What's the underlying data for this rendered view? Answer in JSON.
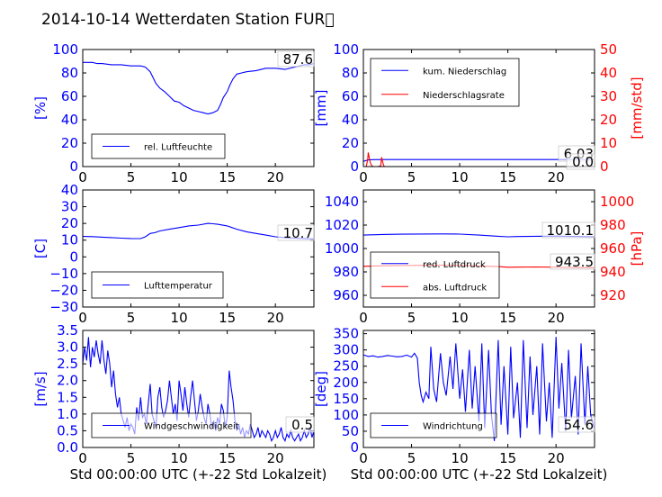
{
  "figure": {
    "title": "2014-10-14 Wetterdaten Station FUR\u0000",
    "colors": {
      "primary": "#0000ff",
      "secondary": "#ff0000",
      "frame": "#000000"
    }
  },
  "chart_data": [
    {
      "id": "humidity",
      "type": "line",
      "title": "",
      "xlabel": "",
      "ylabel": "[%]",
      "xlim": [
        0,
        24
      ],
      "ylim": [
        0,
        100
      ],
      "xticks": [
        "0",
        "5",
        "10",
        "15",
        "20"
      ],
      "yticks": [
        "0",
        "20",
        "40",
        "60",
        "80",
        "100"
      ],
      "annotation": "87.6",
      "legend": {
        "placement": "lower-left",
        "entries": [
          "rel. Luftfeuchte"
        ]
      },
      "series": [
        {
          "name": "rel. Luftfeuchte",
          "color": "#0000ff",
          "x": [
            0,
            0.5,
            1,
            1.5,
            2,
            3,
            4,
            5,
            6,
            6.5,
            7,
            7.3,
            7.6,
            8,
            8.5,
            9,
            9.5,
            10,
            10.5,
            11,
            11.5,
            12,
            12.5,
            13,
            13.5,
            14,
            14.3,
            14.6,
            15,
            15.3,
            15.6,
            16,
            16.5,
            17,
            18,
            19,
            20,
            21,
            22,
            23,
            23.5,
            24
          ],
          "values": [
            89,
            89,
            89,
            88,
            88,
            87,
            87,
            86,
            86,
            85,
            81,
            76,
            71,
            67,
            64,
            60,
            56,
            55,
            52,
            50,
            48,
            47,
            46,
            45,
            46,
            48,
            53,
            59,
            64,
            70,
            75,
            79,
            80,
            81,
            82,
            84,
            84,
            83,
            85,
            87,
            87,
            88
          ]
        }
      ]
    },
    {
      "id": "precipitation",
      "type": "line",
      "title": "",
      "xlabel": "",
      "ylabel": "[mm]",
      "ylabel_right": "[mm/std]",
      "xlim": [
        0,
        24
      ],
      "ylim": [
        0,
        100
      ],
      "ylim_right": [
        0,
        50
      ],
      "xticks": [
        "0",
        "5",
        "10",
        "15",
        "20"
      ],
      "yticks": [
        "0",
        "20",
        "40",
        "60",
        "80",
        "100"
      ],
      "yticks_right": [
        "0",
        "10",
        "20",
        "30",
        "40",
        "50"
      ],
      "annotations": [
        "6.03",
        "0.0"
      ],
      "legend": {
        "placement": "upper-left",
        "entries": [
          "kum. Niederschlag",
          "Niederschlagsrate"
        ]
      },
      "series": [
        {
          "name": "kum. Niederschlag",
          "color": "#0000ff",
          "axis": "left",
          "x": [
            0,
            0.3,
            0.5,
            1,
            2,
            3,
            24
          ],
          "values": [
            4.5,
            5.2,
            5.7,
            5.9,
            6.0,
            6.03,
            6.03
          ]
        },
        {
          "name": "Niederschlagsrate",
          "color": "#ff0000",
          "axis": "right",
          "x": [
            0,
            0.3,
            0.45,
            0.5,
            0.6,
            0.7,
            0.8,
            0.9,
            1,
            1.2,
            1.5,
            1.8,
            1.9,
            2,
            2.1,
            2.2,
            2.4,
            3,
            24
          ],
          "values": [
            0,
            0,
            3,
            6,
            4,
            2,
            0.8,
            0.3,
            0,
            0,
            0,
            0.3,
            4,
            2,
            0.5,
            0,
            0,
            0,
            0
          ]
        }
      ]
    },
    {
      "id": "temperature",
      "type": "line",
      "title": "",
      "xlabel": "",
      "ylabel": "[C]",
      "xlim": [
        0,
        24
      ],
      "ylim": [
        -30,
        40
      ],
      "xticks": [
        "0",
        "5",
        "10",
        "15",
        "20"
      ],
      "yticks": [
        "−30",
        "−20",
        "−10",
        "0",
        "10",
        "20",
        "30",
        "40"
      ],
      "annotation": "10.7",
      "legend": {
        "placement": "lower-left",
        "entries": [
          "Lufttemperatur"
        ]
      },
      "series": [
        {
          "name": "Lufttemperatur",
          "color": "#0000ff",
          "x": [
            0,
            1,
            2,
            3,
            4,
            5,
            6,
            6.5,
            7,
            7.5,
            8,
            9,
            10,
            11,
            12,
            13,
            13.5,
            14,
            15,
            16,
            17,
            18,
            19,
            20,
            21,
            22,
            23,
            24
          ],
          "values": [
            12.2,
            12.1,
            11.8,
            11.5,
            11.2,
            11,
            10.9,
            12,
            14,
            14.5,
            15.5,
            16.5,
            17.5,
            18.5,
            19,
            20,
            19.8,
            19.5,
            18.5,
            16.5,
            15,
            14,
            13,
            12,
            11.5,
            11.2,
            11,
            10.7
          ]
        }
      ]
    },
    {
      "id": "pressure",
      "type": "line",
      "title": "",
      "xlabel": "",
      "ylabel": "",
      "ylabel_right": "[hPa]",
      "xlim": [
        0,
        24
      ],
      "ylim": [
        950,
        1050
      ],
      "ylim_right": [
        910,
        1010
      ],
      "xticks": [
        "0",
        "5",
        "10",
        "15",
        "20"
      ],
      "yticks": [
        "960",
        "980",
        "1000",
        "1020",
        "1040"
      ],
      "yticks_right": [
        "920",
        "940",
        "960",
        "980",
        "1000"
      ],
      "annotations": [
        "1010.1",
        "943.5"
      ],
      "legend": {
        "placement": "lower-left",
        "entries": [
          "red. Luftdruck",
          "abs. Luftdruck"
        ]
      },
      "series": [
        {
          "name": "red. Luftdruck",
          "color": "#0000ff",
          "axis": "left",
          "x": [
            0,
            2,
            4,
            6,
            8,
            10,
            12,
            14,
            15,
            16,
            18,
            20,
            22,
            24
          ],
          "values": [
            1011.5,
            1012,
            1012.2,
            1012.4,
            1012.5,
            1012.3,
            1011.5,
            1010.5,
            1010,
            1010.2,
            1010.5,
            1010.6,
            1010.3,
            1010.1
          ]
        },
        {
          "name": "abs. Luftdruck",
          "color": "#ff0000",
          "axis": "right",
          "x": [
            0,
            2,
            4,
            6,
            8,
            10,
            12,
            14,
            15,
            16,
            18,
            20,
            22,
            24
          ],
          "values": [
            944.8,
            945.2,
            945.4,
            945.6,
            945.8,
            945.6,
            945.1,
            944.5,
            944,
            944.1,
            944.2,
            944,
            943.7,
            943.5
          ]
        }
      ]
    },
    {
      "id": "windspeed",
      "type": "line",
      "title": "",
      "xlabel": "Std 00:00:00 UTC (+-22 Std Lokalzeit)",
      "ylabel": "[m/s]",
      "xlim": [
        0,
        24
      ],
      "ylim": [
        0,
        3.5
      ],
      "xticks": [
        "0",
        "5",
        "10",
        "15",
        "20"
      ],
      "yticks": [
        "0.0",
        "0.5",
        "1.0",
        "1.5",
        "2.0",
        "2.5",
        "3.0",
        "3.5"
      ],
      "annotation": "0.5",
      "legend": {
        "placement": "lower-left",
        "entries": [
          "Windgeschwindigkeit"
        ]
      },
      "series": [
        {
          "name": "Windgeschwindigkeit",
          "color": "#0000ff",
          "x": [
            0,
            0.2,
            0.4,
            0.6,
            0.8,
            1,
            1.2,
            1.4,
            1.6,
            1.8,
            2,
            2.2,
            2.4,
            2.6,
            2.8,
            3,
            3.2,
            3.4,
            3.6,
            3.8,
            4,
            4.2,
            4.4,
            4.6,
            4.8,
            5,
            5.2,
            5.4,
            5.6,
            5.8,
            6,
            6.2,
            6.4,
            6.6,
            6.8,
            7,
            7.2,
            7.4,
            7.6,
            7.8,
            8,
            8.2,
            8.4,
            8.6,
            8.8,
            9,
            9.2,
            9.4,
            9.6,
            9.8,
            10,
            10.2,
            10.4,
            10.6,
            10.8,
            11,
            11.2,
            11.4,
            11.6,
            11.8,
            12,
            12.2,
            12.4,
            12.6,
            12.8,
            13,
            13.2,
            13.4,
            13.6,
            13.8,
            14,
            14.2,
            14.4,
            14.6,
            14.8,
            15,
            15.2,
            15.4,
            15.6,
            15.8,
            16,
            16.2,
            16.4,
            16.6,
            16.8,
            17,
            17.2,
            17.4,
            17.6,
            17.8,
            18,
            18.2,
            18.4,
            18.6,
            18.8,
            19,
            19.2,
            19.4,
            19.6,
            19.8,
            20,
            20.2,
            20.4,
            20.6,
            20.8,
            21,
            21.2,
            21.4,
            21.6,
            21.8,
            22,
            22.2,
            22.4,
            22.6,
            22.8,
            23,
            23.2,
            23.4,
            23.6,
            23.8,
            24
          ],
          "values": [
            2.5,
            3.0,
            2.6,
            3.3,
            2.4,
            3.0,
            2.7,
            3.2,
            2.8,
            2.5,
            3.2,
            2.6,
            2.2,
            2.9,
            2.5,
            1.8,
            2.3,
            1.6,
            1.2,
            1.5,
            1.0,
            0.8,
            0.6,
            0.9,
            0.5,
            0.7,
            0.6,
            0.4,
            1.2,
            0.8,
            1.5,
            0.9,
            1.0,
            0.7,
            1.3,
            1.9,
            1.0,
            0.8,
            0.6,
            1.5,
            1.8,
            1.2,
            0.9,
            1.1,
            1.4,
            2.0,
            1.5,
            1.0,
            1.3,
            0.8,
            2.0,
            1.6,
            1.1,
            1.8,
            1.3,
            0.9,
            1.5,
            2.0,
            1.4,
            0.8,
            1.1,
            1.6,
            1.2,
            0.9,
            0.7,
            1.3,
            1.0,
            0.6,
            0.8,
            0.5,
            0.9,
            0.7,
            1.3,
            1.1,
            0.6,
            0.9,
            2.3,
            1.8,
            1.4,
            0.8,
            0.5,
            0.7,
            0.4,
            0.6,
            0.3,
            0.5,
            0.4,
            0.7,
            0.5,
            0.3,
            0.4,
            0.6,
            0.3,
            0.5,
            0.4,
            0.3,
            0.5,
            0.4,
            0.2,
            0.3,
            0.5,
            0.3,
            0.4,
            0.6,
            0.3,
            0.2,
            0.4,
            0.3,
            0.5,
            0.3,
            0.2,
            0.3,
            0.4,
            0.2,
            0.3,
            0.5,
            0.3,
            0.4,
            0.6,
            0.3,
            0.5
          ]
        }
      ]
    },
    {
      "id": "winddirection",
      "type": "line",
      "title": "",
      "xlabel": "Std 00:00:00 UTC (+-22 Std Lokalzeit)",
      "ylabel": "[deg]",
      "xlim": [
        0,
        24
      ],
      "ylim": [
        0,
        360
      ],
      "xticks": [
        "0",
        "5",
        "10",
        "15",
        "20"
      ],
      "yticks": [
        "0",
        "50",
        "100",
        "150",
        "200",
        "250",
        "300",
        "350"
      ],
      "annotation": "54.6",
      "legend": {
        "placement": "lower-left",
        "entries": [
          "Windrichtung"
        ]
      },
      "series": [
        {
          "name": "Windrichtung",
          "color": "#0000ff",
          "x": [
            0,
            0.5,
            1,
            1.5,
            2,
            2.5,
            3,
            3.5,
            4,
            4.5,
            5,
            5.3,
            5.6,
            5.8,
            6,
            6.2,
            6.5,
            6.8,
            7,
            7.3,
            7.6,
            8,
            8.3,
            8.6,
            9,
            9.3,
            9.6,
            10,
            10.3,
            10.6,
            11,
            11.3,
            11.6,
            12,
            12.3,
            12.6,
            13,
            13.3,
            13.6,
            14,
            14.3,
            14.6,
            15,
            15.3,
            15.6,
            16,
            16.3,
            16.6,
            17,
            17.3,
            17.6,
            18,
            18.3,
            18.6,
            19,
            19.3,
            19.6,
            20,
            20.3,
            20.6,
            21,
            21.3,
            21.6,
            22,
            22.3,
            22.6,
            23,
            23.3,
            23.6,
            24
          ],
          "values": [
            285,
            280,
            282,
            278,
            280,
            283,
            281,
            279,
            280,
            284,
            278,
            290,
            275,
            200,
            160,
            140,
            170,
            150,
            310,
            180,
            140,
            290,
            200,
            160,
            280,
            180,
            320,
            150,
            240,
            110,
            300,
            120,
            250,
            80,
            320,
            60,
            300,
            100,
            20,
            330,
            70,
            250,
            40,
            310,
            90,
            200,
            30,
            330,
            60,
            280,
            100,
            250,
            40,
            320,
            80,
            200,
            30,
            340,
            120,
            260,
            50,
            300,
            90,
            220,
            40,
            320,
            70,
            250,
            100,
            55
          ]
        }
      ]
    }
  ]
}
